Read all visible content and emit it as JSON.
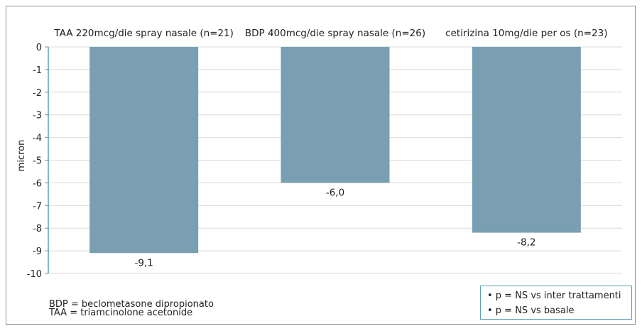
{
  "chart_data": {
    "type": "bar",
    "categories": [
      "TAA 220mcg/die spray nasale (n=21)",
      "BDP 400mcg/die spray nasale (n=26)",
      "cetirizina 10mg/die per os (n=23)"
    ],
    "values": [
      -9.1,
      -6.0,
      -8.2
    ],
    "value_labels": [
      "-9,1",
      "-6,0",
      "-8,2"
    ],
    "ylabel": "micron",
    "ylim": [
      -10,
      0
    ],
    "yticks": [
      0,
      -1,
      -2,
      -3,
      -4,
      -5,
      -6,
      -7,
      -8,
      -9,
      -10
    ],
    "grid": true,
    "colors": {
      "bar": "#7a9fb3",
      "grid": "#d9d9d9",
      "axis": "#5aa0b4"
    }
  },
  "footnotes": [
    "BDP = beclometasone dipropionato",
    "TAA = triamcinolone acetonide"
  ],
  "notes_box": [
    "• p = NS vs inter trattamenti",
    "• p = NS vs basale"
  ]
}
